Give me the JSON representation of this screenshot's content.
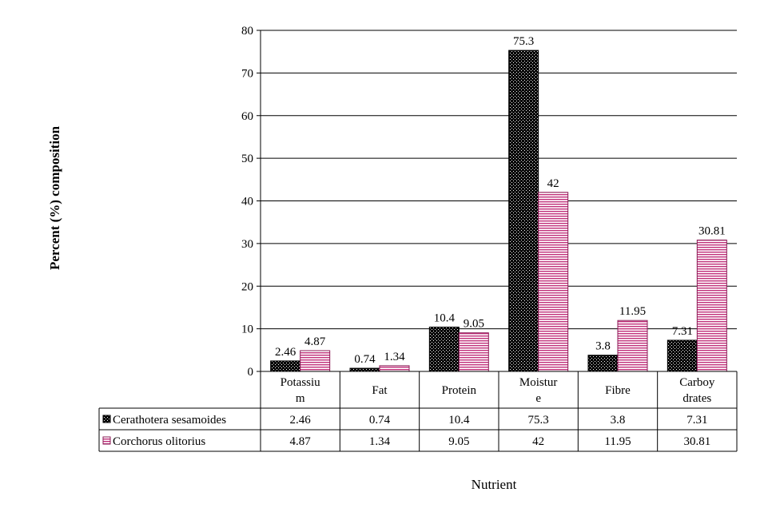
{
  "chart_data": {
    "type": "bar",
    "categories": [
      [
        "Potassiu",
        "m"
      ],
      [
        "Fat"
      ],
      [
        "Protein"
      ],
      [
        "Moistur",
        "e"
      ],
      [
        "Fibre"
      ],
      [
        "Carboy",
        "drates"
      ]
    ],
    "series": [
      {
        "name": "Cerathotera sesamoides",
        "values": [
          2.46,
          0.74,
          10.4,
          75.3,
          3.8,
          7.31
        ],
        "labels": [
          "2.46",
          "0.74",
          "10.4",
          "75.3",
          "3.8",
          "7.31"
        ],
        "color": "#000000",
        "pattern": "dotted"
      },
      {
        "name": "Corchorus olitorius",
        "values": [
          4.87,
          1.34,
          9.05,
          42,
          11.95,
          30.81
        ],
        "labels": [
          "4.87",
          "1.34",
          "9.05",
          "42",
          "11.95",
          "30.81"
        ],
        "color": "#c0307a",
        "pattern": "horizontal-stripes"
      }
    ],
    "ylabel": "Percent (%) composition",
    "xlabel": "Nutrient",
    "ylim": [
      0,
      80
    ],
    "yticks": [
      "0",
      "10",
      "20",
      "30",
      "40",
      "50",
      "60",
      "70",
      "80"
    ],
    "grid": true,
    "legend": "data-table"
  }
}
